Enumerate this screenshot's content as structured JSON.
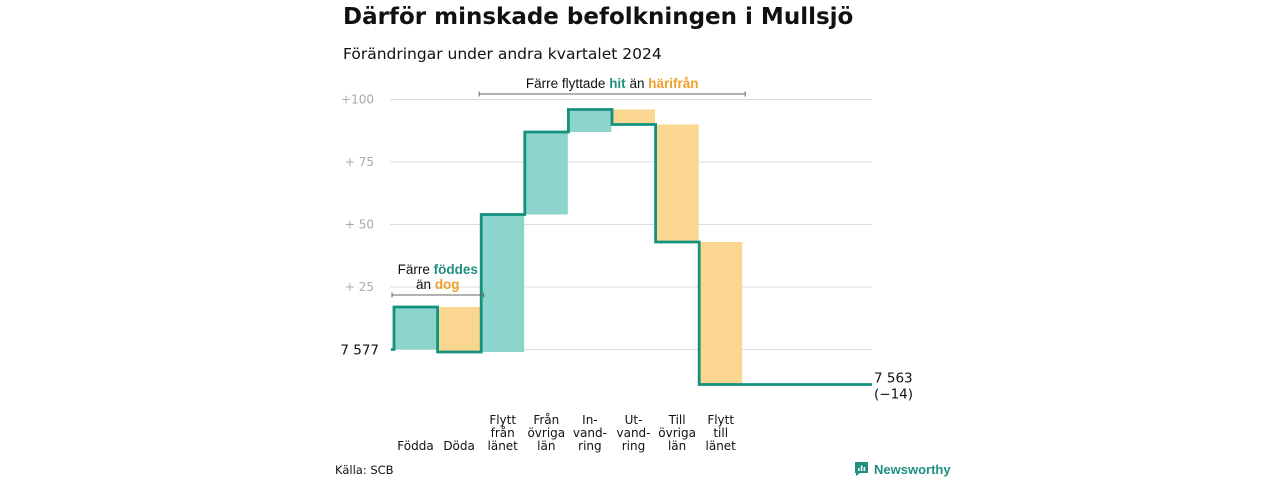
{
  "header": {
    "title": "Därför minskade befolkningen i Mullsjö",
    "subtitle": "Förändringar under andra kvartalet 2024"
  },
  "footer": {
    "source": "Källa: SCB",
    "brand": "Newsworthy"
  },
  "colors": {
    "increase": "#8dd5cc",
    "decrease": "#fbd690",
    "line": "#14907f",
    "teal_text": "#1f8f80",
    "orange_text": "#f0a02a",
    "grid": "#dddddd",
    "tick": "#aaaaaa"
  },
  "chart_data": {
    "type": "waterfall",
    "start_value": 7577,
    "start_label": "7 577",
    "end_value": 7563,
    "end_label": "7 563",
    "end_change_label": "(−14)",
    "y_ticks": [
      {
        "value": 100,
        "label": "+100"
      },
      {
        "value": 75,
        "label": "+  75"
      },
      {
        "value": 50,
        "label": "+  50"
      },
      {
        "value": 25,
        "label": "+  25"
      }
    ],
    "ylim": [
      -15,
      101
    ],
    "steps": [
      {
        "label_lines": [
          "Födda"
        ],
        "change": 17,
        "kind": "increase"
      },
      {
        "label_lines": [
          "Döda"
        ],
        "change": -18,
        "kind": "decrease"
      },
      {
        "label_lines": [
          "Flytt",
          "från",
          "länet"
        ],
        "change": 55,
        "kind": "increase"
      },
      {
        "label_lines": [
          "Från",
          "övriga",
          "län"
        ],
        "change": 33,
        "kind": "increase"
      },
      {
        "label_lines": [
          "In-",
          "vand-",
          "ring"
        ],
        "change": 9,
        "kind": "increase"
      },
      {
        "label_lines": [
          "Ut-",
          "vand-",
          "ring"
        ],
        "change": -6,
        "kind": "decrease"
      },
      {
        "label_lines": [
          "Till",
          "övriga",
          "län"
        ],
        "change": -47,
        "kind": "decrease"
      },
      {
        "label_lines": [
          "Flytt",
          "till",
          "länet"
        ],
        "change": -57,
        "kind": "decrease"
      }
    ],
    "annotations": [
      {
        "lines": [
          [
            {
              "text": "Färre ",
              "style": "plain"
            },
            {
              "text": "föddes",
              "style": "teal"
            }
          ],
          [
            {
              "text": "än ",
              "style": "plain"
            },
            {
              "text": "dog",
              "style": "orange"
            }
          ]
        ],
        "from_step": 0,
        "to_step": 1
      },
      {
        "lines": [
          [
            {
              "text": "Färre flyttade ",
              "style": "plain"
            },
            {
              "text": "hit",
              "style": "teal"
            },
            {
              "text": "  än ",
              "style": "plain"
            },
            {
              "text": "härifrån",
              "style": "orange"
            }
          ]
        ],
        "from_step": 2,
        "to_step": 7
      }
    ]
  }
}
